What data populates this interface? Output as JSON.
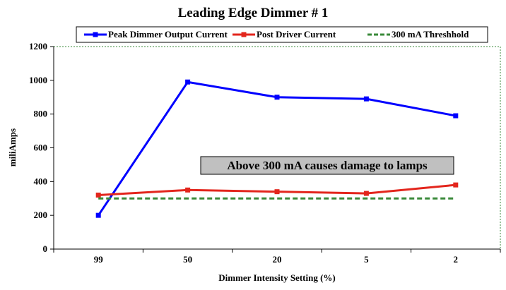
{
  "chart_data": {
    "type": "line",
    "title": "Leading Edge Dimmer # 1",
    "xlabel": "Dimmer Intensity Setting (%)",
    "ylabel": "miliAmps",
    "categories": [
      "99",
      "50",
      "20",
      "5",
      "2"
    ],
    "ylim": [
      0,
      1200
    ],
    "yticks": [
      0,
      200,
      400,
      600,
      800,
      1000,
      1200
    ],
    "grid": false,
    "legend_position": "top",
    "series": [
      {
        "name": "Peak Dimmer Output Current",
        "values": [
          200,
          990,
          900,
          890,
          790
        ],
        "color": "#0000ff",
        "style": "solid",
        "marker": "square"
      },
      {
        "name": "Post Driver Current",
        "values": [
          320,
          350,
          340,
          330,
          380
        ],
        "color": "#e3261d",
        "style": "solid",
        "marker": "square"
      },
      {
        "name": "300 mA Threshhold",
        "values": [
          300,
          300,
          300,
          300,
          300
        ],
        "color": "#3a8a3a",
        "style": "dashed",
        "marker": "none"
      }
    ],
    "annotation": "Above 300 mA causes damage to lamps"
  }
}
